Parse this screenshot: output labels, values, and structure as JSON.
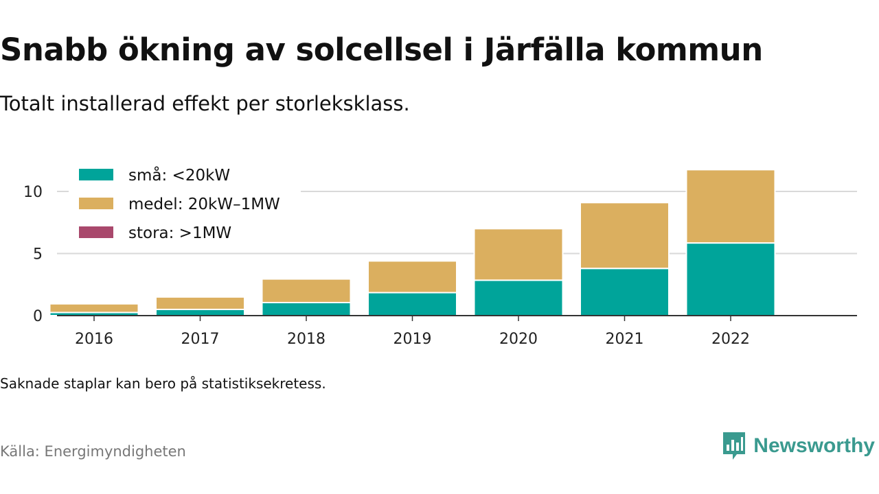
{
  "title": "Snabb ökning av solcellsel i Järfälla kommun",
  "subtitle": "Totalt installerad effekt per storleksklass.",
  "note": "Saknade staplar kan bero på statistiksekretess.",
  "source": "Källa: Energimyndigheten",
  "brand": {
    "name": "Newsworthy",
    "logo_icon": "newsworthy-logo-icon",
    "color": "#3a9a8f"
  },
  "chart_data": {
    "type": "bar",
    "stacked": true,
    "title": "",
    "xlabel": "",
    "ylabel": "",
    "categories": [
      "2016",
      "2017",
      "2018",
      "2019",
      "2020",
      "2021",
      "2022"
    ],
    "series": [
      {
        "name": "små: <20kW",
        "color": "#00a49a",
        "values": [
          0.25,
          0.5,
          1.05,
          1.85,
          2.85,
          3.8,
          5.85
        ]
      },
      {
        "name": "medel: 20kW–1MW",
        "color": "#dbaf5f",
        "values": [
          0.7,
          1.0,
          1.9,
          2.55,
          4.15,
          5.3,
          5.9
        ]
      },
      {
        "name": "stora: >1MW",
        "color": "#a9486c",
        "values": [
          0,
          0,
          0,
          0,
          0,
          0,
          0
        ]
      }
    ],
    "yticks": [
      "0",
      "5",
      "10"
    ],
    "ylim": [
      0,
      12.6
    ],
    "grid": true,
    "legend": "top-left"
  }
}
